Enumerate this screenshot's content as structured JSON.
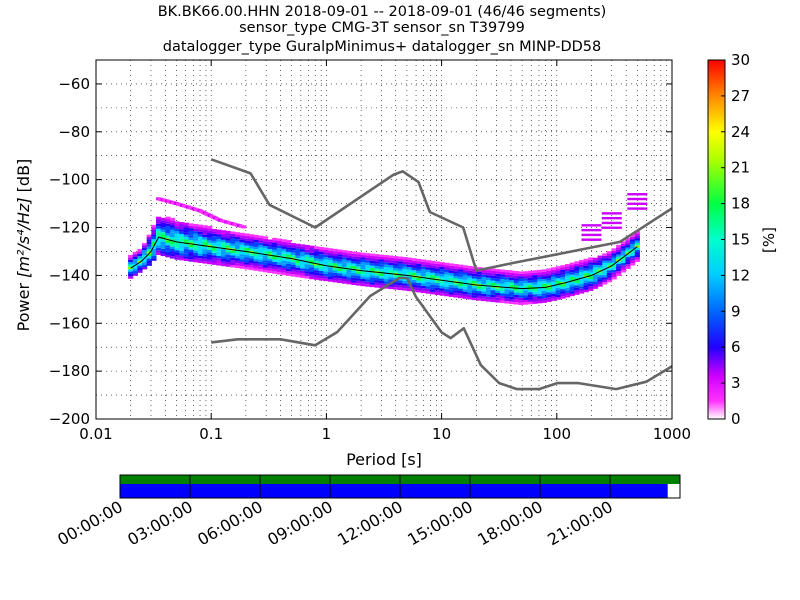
{
  "chart_data": {
    "type": "heatmap",
    "title_lines": [
      "BK.BK66.00.HHN   2018-09-01 -- 2018-09-01  (46/46 segments)",
      "sensor_type CMG-3T sensor_sn T39799",
      "datalogger_type GuralpMinimus+ datalogger_sn MINP-DD58"
    ],
    "xlabel": "Period [s]",
    "ylabel_prefix": "Power",
    "ylabel_units": "[m²/s⁴/Hz]",
    "ylabel_suffix": "[dB]",
    "xscale": "log",
    "xlim": [
      0.01,
      1000
    ],
    "ylim": [
      -200,
      -50
    ],
    "x_ticks": [
      0.01,
      0.1,
      1,
      10,
      100,
      1000
    ],
    "x_tick_labels": [
      "0.01",
      "0.1",
      "1",
      "10",
      "100",
      "1000"
    ],
    "y_ticks": [
      -200,
      -180,
      -160,
      -140,
      -120,
      -100,
      -80,
      -60
    ],
    "y_tick_labels": [
      "−200",
      "−180",
      "−160",
      "−140",
      "−120",
      "−100",
      "−80",
      "−60"
    ],
    "grid": true,
    "colorbar": {
      "label": "[%]",
      "range": [
        0,
        30
      ],
      "ticks": [
        0,
        3,
        6,
        9,
        12,
        15,
        18,
        21,
        24,
        27,
        30
      ],
      "tick_labels": [
        "0",
        "3",
        "6",
        "9",
        "12",
        "15",
        "18",
        "21",
        "24",
        "27",
        "30"
      ],
      "colormap": "pqlx"
    },
    "reference_curves": {
      "color": "#666666",
      "high_noise_model": {
        "period": [
          0.1,
          0.22,
          0.32,
          0.8,
          3.8,
          4.6,
          6.3,
          7.9,
          15.4,
          20,
          40,
          354,
          1000
        ],
        "power": [
          -91.5,
          -97.4,
          -110.5,
          -120,
          -98,
          -96.5,
          -101,
          -113.5,
          -120,
          -138,
          -135,
          -126,
          -112
        ]
      },
      "low_noise_model": {
        "period": [
          0.1,
          0.17,
          0.4,
          0.8,
          1.24,
          2.4,
          4.3,
          5,
          6,
          10,
          12,
          15.6,
          21.9,
          31.6,
          45,
          70,
          101,
          154,
          328,
          600,
          1000
        ],
        "power": [
          -168,
          -166.7,
          -166.7,
          -169.2,
          -163.7,
          -148.6,
          -141.1,
          -141.1,
          -149,
          -163.8,
          -166.2,
          -162.1,
          -177.5,
          -185,
          -187.5,
          -187.5,
          -185,
          -185,
          -187.5,
          -184.4,
          -178
        ]
      }
    },
    "density": {
      "mode_curve": {
        "period": [
          0.02,
          0.025,
          0.03,
          0.035,
          0.05,
          0.1,
          0.2,
          0.5,
          1,
          2,
          5,
          10,
          20,
          50,
          80,
          120,
          200,
          300,
          500
        ],
        "power": [
          -137,
          -134,
          -130,
          -124,
          -126,
          -128,
          -130,
          -133,
          -136,
          -138,
          -140,
          -142,
          -144,
          -145.5,
          -145,
          -143,
          -140,
          -136,
          -128
        ]
      },
      "band_upper": {
        "period": [
          0.02,
          0.025,
          0.03,
          0.035,
          0.05,
          0.1,
          0.2,
          0.5,
          1,
          2,
          5,
          10,
          20,
          50,
          80,
          120,
          200,
          300,
          500
        ],
        "power": [
          -132,
          -129,
          -122,
          -115,
          -117,
          -120,
          -123,
          -126,
          -129,
          -131,
          -133,
          -135,
          -137,
          -139,
          -138,
          -136,
          -133,
          -130,
          -122
        ]
      },
      "band_lower": {
        "period": [
          0.02,
          0.025,
          0.03,
          0.035,
          0.05,
          0.1,
          0.2,
          0.5,
          1,
          2,
          5,
          10,
          20,
          50,
          80,
          120,
          200,
          300,
          500
        ],
        "power": [
          -141,
          -138,
          -135,
          -131,
          -133,
          -135,
          -137,
          -140,
          -142,
          -144,
          -146,
          -148,
          -150,
          -152,
          -151,
          -149,
          -146,
          -142,
          -134
        ]
      },
      "outliers_upper": {
        "period": [
          0.035,
          0.05,
          0.08,
          0.12,
          0.2
        ],
        "power": [
          -108,
          -110,
          -113,
          -117,
          -120
        ]
      },
      "long_period_upper": {
        "period": [
          200,
          300,
          500
        ],
        "power": [
          -125,
          -120,
          -112
        ]
      }
    }
  },
  "time_coverage": {
    "tick_labels": [
      "00:00:00",
      "03:00:00",
      "06:00:00",
      "09:00:00",
      "12:00:00",
      "15:00:00",
      "18:00:00",
      "21:00:00"
    ],
    "data_fraction": 0.978,
    "colors": {
      "coverage_top": "#008000",
      "coverage_data": "#0000ff",
      "gap": "#ffffff"
    }
  }
}
